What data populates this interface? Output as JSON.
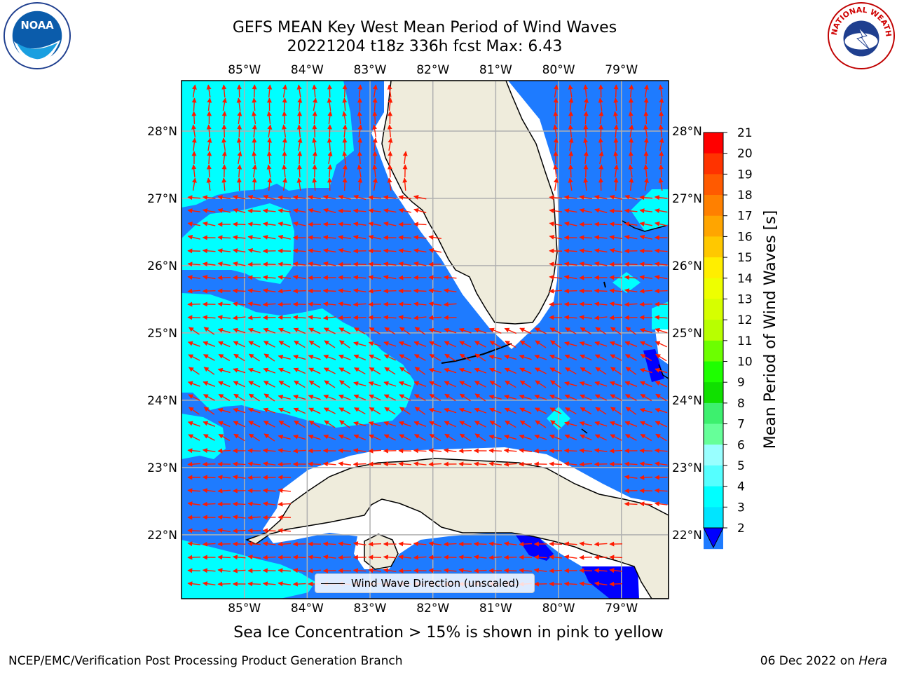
{
  "header": {
    "title_line1": "GEFS MEAN Key West Mean Period of Wind Waves",
    "title_line2": "20221204 t18z 336h fcst   Max: 6.43"
  },
  "logos": {
    "noaa": {
      "icon": "noaa-logo",
      "text": "NOAA"
    },
    "nws": {
      "icon": "nws-logo",
      "text": "NATIONAL WEATHER SERVICE"
    }
  },
  "map": {
    "lon_ticks": [
      "85°W",
      "84°W",
      "83°W",
      "82°W",
      "81°W",
      "80°W",
      "79°W"
    ],
    "lat_ticks": [
      "28°N",
      "27°N",
      "26°N",
      "25°N",
      "24°N",
      "23°N",
      "22°N"
    ],
    "extent": {
      "lon": [
        -86.0,
        -78.25
      ],
      "lat": [
        21.05,
        28.75
      ]
    },
    "colors": {
      "land": "#efecdc",
      "water_2_4": "#1e7bff",
      "water_4_6": "#00ffff",
      "water_lt_2": "#0000ff",
      "arrow": "#ff1a00",
      "grid": "#b0b0b0"
    },
    "legend_label": "Wind Wave Direction (unscaled)"
  },
  "colorbar": {
    "label": "Mean Period of Wind Waves [s]",
    "ticks": [
      "21",
      "20",
      "19",
      "18",
      "17",
      "16",
      "15",
      "14",
      "13",
      "12",
      "11",
      "10",
      "9",
      "8",
      "7",
      "6",
      "5",
      "4",
      "3",
      "2"
    ],
    "colors": [
      "#ff0000",
      "#ff3300",
      "#ff5a00",
      "#ff8000",
      "#ffa500",
      "#ffc800",
      "#ffee00",
      "#eeff00",
      "#d6ff00",
      "#b8ff00",
      "#6cff00",
      "#1eff00",
      "#10e000",
      "#3df06e",
      "#66ff99",
      "#99ffff",
      "#55ffff",
      "#00ffff",
      "#00e5ff",
      "#1e7bff"
    ],
    "extend_color": "#0000ff"
  },
  "footer": {
    "note": "Sea Ice Concentration > 15% is shown in pink to yellow",
    "left": "NCEP/EMC/Verification Post Processing Product Generation Branch",
    "right_date": "06 Dec 2022 on ",
    "right_host": "Hera"
  }
}
